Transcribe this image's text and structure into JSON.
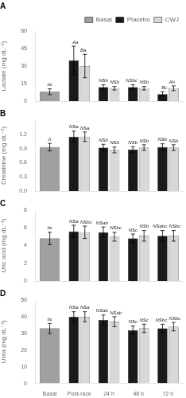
{
  "chart_data": [
    {
      "type": "bar",
      "title": "A",
      "ylabel": "Lactate (mg dL⁻¹)",
      "categories": [
        "Basal",
        "Post-race",
        "24 h",
        "48 h",
        "72 h"
      ],
      "series": [
        {
          "name": "Basal",
          "color": "#a0a0a0",
          "values": [
            8,
            null,
            null,
            null,
            null
          ],
          "errors": [
            2.5,
            null,
            null,
            null,
            null
          ],
          "annotations": [
            "bc",
            null,
            null,
            null,
            null
          ]
        },
        {
          "name": "Placebo",
          "color": "#1a1a1a",
          "values": [
            null,
            35,
            12,
            12,
            6
          ],
          "errors": [
            null,
            12,
            2,
            2,
            2
          ],
          "annotations": [
            null,
            "Aa",
            "NSb",
            "NSbc",
            "Bc"
          ]
        },
        {
          "name": "CWJ",
          "color": "#d8d8d8",
          "values": [
            null,
            30,
            11,
            11,
            11
          ],
          "errors": [
            null,
            10,
            1.5,
            1.5,
            2
          ],
          "annotations": [
            null,
            "Ba",
            "NSb",
            "NSb",
            "Ab"
          ]
        }
      ],
      "ylim": [
        0,
        60
      ],
      "yticks": [
        0,
        15,
        30,
        45,
        60
      ],
      "grid": false,
      "legend": "upper right",
      "tick_labels": "y"
    },
    {
      "type": "bar",
      "title": "B",
      "ylabel": "Creatinine (mg dL⁻¹)",
      "categories": [
        "Basal",
        "Post-race",
        "24 h",
        "48 h",
        "72 h"
      ],
      "series": [
        {
          "name": "Basal",
          "color": "#a0a0a0",
          "values": [
            0.93,
            null,
            null,
            null,
            null
          ],
          "errors": [
            0.08,
            null,
            null,
            null,
            null
          ],
          "annotations": [
            "b",
            null,
            null,
            null,
            null
          ]
        },
        {
          "name": "Placebo",
          "color": "#1a1a1a",
          "values": [
            null,
            1.15,
            0.92,
            0.88,
            0.93
          ],
          "errors": [
            null,
            0.12,
            0.07,
            0.06,
            0.07
          ],
          "annotations": [
            null,
            "NSa",
            "NSb",
            "NSb",
            "NSb"
          ]
        },
        {
          "name": "CWJ",
          "color": "#d8d8d8",
          "values": [
            null,
            1.15,
            0.87,
            0.92,
            0.92
          ],
          "errors": [
            null,
            0.1,
            0.06,
            0.06,
            0.06
          ],
          "annotations": [
            null,
            "NSa",
            "NSb",
            "NSb",
            "NSb"
          ]
        }
      ],
      "ylim": [
        0.0,
        1.5
      ],
      "yticks": [
        {
          "value": 0.0,
          "label": "0.0"
        },
        0.3,
        0.6,
        0.9,
        1.2
      ],
      "grid": false,
      "tick_labels": "y"
    },
    {
      "type": "bar",
      "title": "C",
      "ylabel": "Uric acid (mg dL⁻¹)",
      "categories": [
        "Basal",
        "Post-race",
        "24 h",
        "48 h",
        "72 h"
      ],
      "series": [
        {
          "name": "Basal",
          "color": "#a0a0a0",
          "values": [
            4.8,
            null,
            null,
            null,
            null
          ],
          "errors": [
            0.7,
            null,
            null,
            null,
            null
          ],
          "annotations": [
            "bc",
            null,
            null,
            null,
            null
          ]
        },
        {
          "name": "Placebo",
          "color": "#1a1a1a",
          "values": [
            null,
            5.6,
            5.5,
            4.8,
            5.1
          ],
          "errors": [
            null,
            0.7,
            0.6,
            0.5,
            0.6
          ],
          "annotations": [
            null,
            "NSa",
            "NSab",
            "NSc",
            "NSabc"
          ]
        },
        {
          "name": "CWJ",
          "color": "#d8d8d8",
          "values": [
            null,
            5.5,
            5.0,
            5.1,
            5.1
          ],
          "errors": [
            null,
            0.7,
            0.5,
            0.6,
            0.6
          ],
          "annotations": [
            null,
            "NSbc",
            "NSbc",
            "NSb",
            "NSbc"
          ]
        }
      ],
      "ylim": [
        0,
        8
      ],
      "yticks": [
        0,
        2,
        4,
        6,
        8
      ],
      "grid": false,
      "tick_labels": "y"
    },
    {
      "type": "bar",
      "title": "D",
      "ylabel": "Urea (mg dL⁻¹)",
      "categories": [
        "Basal",
        "Post-race",
        "24 h",
        "48 h",
        "72 h"
      ],
      "series": [
        {
          "name": "Basal",
          "color": "#a0a0a0",
          "values": [
            33,
            null,
            null,
            null,
            null
          ],
          "errors": [
            3,
            null,
            null,
            null,
            null
          ],
          "annotations": [
            "bc",
            null,
            null,
            null,
            null
          ]
        },
        {
          "name": "Placebo",
          "color": "#1a1a1a",
          "values": [
            null,
            40,
            38,
            32,
            33
          ],
          "errors": [
            null,
            3,
            3,
            2.5,
            2.5
          ],
          "annotations": [
            null,
            "NSa",
            "NSab",
            "NSc",
            "NSbc"
          ]
        },
        {
          "name": "CWJ",
          "color": "#d8d8d8",
          "values": [
            null,
            40,
            37,
            33,
            34
          ],
          "errors": [
            null,
            3,
            3,
            2.5,
            2.5
          ],
          "annotations": [
            null,
            "NSa",
            "NSab",
            "NSc",
            "NSbc"
          ]
        }
      ],
      "ylim": [
        0,
        50
      ],
      "yticks": [
        0,
        10,
        20,
        30,
        40,
        50
      ],
      "grid": false
    }
  ]
}
